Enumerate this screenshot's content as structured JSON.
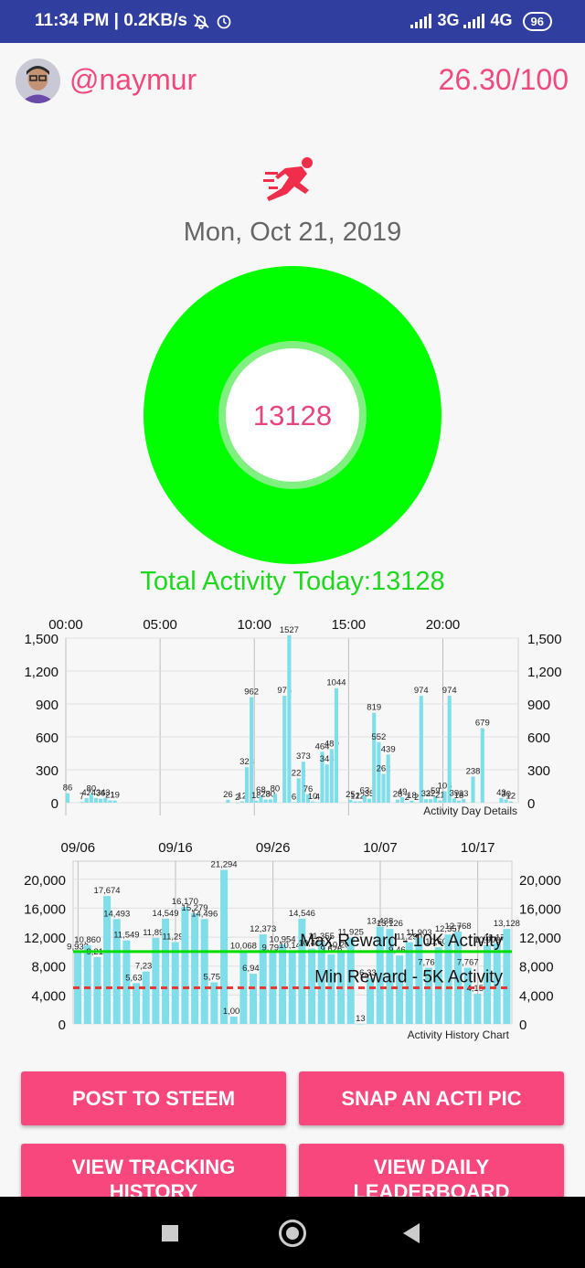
{
  "status_bar": {
    "time": "11:34 PM",
    "speed": "0.2KB/s",
    "net1": "3G",
    "net2": "4G",
    "battery": "96"
  },
  "header": {
    "username": "@naymur",
    "score": "26.30/100"
  },
  "date": "Mon, Oct 21, 2019",
  "ring": {
    "value": "13128",
    "color": "#00ff00"
  },
  "total_label": "Total Activity Today:13128",
  "chart_data": [
    {
      "type": "bar",
      "title": "Activity Day Details",
      "x_ticks": [
        "00:00",
        "05:00",
        "10:00",
        "15:00",
        "20:00"
      ],
      "y_ticks": [
        "0",
        "300",
        "600",
        "900",
        "1,200",
        "1,500"
      ],
      "ylim": [
        0,
        1500
      ],
      "x_range_hours": [
        0,
        24
      ],
      "bar_color": "#80deea",
      "bars": [
        {
          "h": 0.0,
          "v": 86,
          "l": "86"
        },
        {
          "h": 0.75,
          "v": 7,
          "l": "7"
        },
        {
          "h": 1.0,
          "v": 42,
          "l": "42"
        },
        {
          "h": 1.25,
          "v": 80,
          "l": "80"
        },
        {
          "h": 1.5,
          "v": 43,
          "l": "43"
        },
        {
          "h": 1.75,
          "v": 36,
          "l": "36"
        },
        {
          "h": 2.0,
          "v": 43,
          "l": "43"
        },
        {
          "h": 2.25,
          "v": 21,
          "l": "21"
        },
        {
          "h": 2.5,
          "v": 19,
          "l": "19"
        },
        {
          "h": 8.5,
          "v": 26,
          "l": "26"
        },
        {
          "h": 9.0,
          "v": 2,
          "l": "2"
        },
        {
          "h": 9.25,
          "v": 12,
          "l": "12"
        },
        {
          "h": 9.5,
          "v": 323,
          "l": "323"
        },
        {
          "h": 9.75,
          "v": 962,
          "l": "962"
        },
        {
          "h": 10.0,
          "v": 18,
          "l": "18"
        },
        {
          "h": 10.25,
          "v": 68,
          "l": "68"
        },
        {
          "h": 10.5,
          "v": 28,
          "l": "28"
        },
        {
          "h": 10.75,
          "v": 30,
          "l": "30"
        },
        {
          "h": 11.0,
          "v": 80,
          "l": "80"
        },
        {
          "h": 11.5,
          "v": 975,
          "l": "975"
        },
        {
          "h": 11.75,
          "v": 1527,
          "l": "1527"
        },
        {
          "h": 12.0,
          "v": 6,
          "l": "6"
        },
        {
          "h": 12.25,
          "v": 222,
          "l": "222"
        },
        {
          "h": 12.5,
          "v": 373,
          "l": "373"
        },
        {
          "h": 12.75,
          "v": 76,
          "l": "76"
        },
        {
          "h": 13.0,
          "v": 10,
          "l": "10"
        },
        {
          "h": 13.25,
          "v": 4,
          "l": "4"
        },
        {
          "h": 13.5,
          "v": 464,
          "l": "464"
        },
        {
          "h": 13.75,
          "v": 348,
          "l": "348"
        },
        {
          "h": 14.0,
          "v": 489,
          "l": "489"
        },
        {
          "h": 14.25,
          "v": 1044,
          "l": "1044"
        },
        {
          "h": 15.0,
          "v": 25,
          "l": "25"
        },
        {
          "h": 15.25,
          "v": 12,
          "l": "12"
        },
        {
          "h": 15.5,
          "v": 12,
          "l": "12"
        },
        {
          "h": 15.75,
          "v": 63,
          "l": "63"
        },
        {
          "h": 16.0,
          "v": 35,
          "l": "35"
        },
        {
          "h": 16.25,
          "v": 819,
          "l": "819"
        },
        {
          "h": 16.5,
          "v": 552,
          "l": "552"
        },
        {
          "h": 16.75,
          "v": 262,
          "l": "262"
        },
        {
          "h": 17.0,
          "v": 439,
          "l": "439"
        },
        {
          "h": 17.5,
          "v": 28,
          "l": "28"
        },
        {
          "h": 17.75,
          "v": 49,
          "l": "49"
        },
        {
          "h": 18.0,
          "v": 2,
          "l": "2"
        },
        {
          "h": 18.25,
          "v": 18,
          "l": "18"
        },
        {
          "h": 18.5,
          "v": 2,
          "l": "2"
        },
        {
          "h": 18.75,
          "v": 974,
          "l": "974"
        },
        {
          "h": 19.0,
          "v": 32,
          "l": "32"
        },
        {
          "h": 19.25,
          "v": 32,
          "l": "32"
        },
        {
          "h": 19.5,
          "v": 59,
          "l": "59"
        },
        {
          "h": 19.75,
          "v": 21,
          "l": "21"
        },
        {
          "h": 20.0,
          "v": 105,
          "l": "105"
        },
        {
          "h": 20.25,
          "v": 974,
          "l": "974"
        },
        {
          "h": 20.5,
          "v": 39,
          "l": "39"
        },
        {
          "h": 20.75,
          "v": 18,
          "l": "18"
        },
        {
          "h": 21.0,
          "v": 33,
          "l": "33"
        },
        {
          "h": 21.5,
          "v": 238,
          "l": "238"
        },
        {
          "h": 22.0,
          "v": 679,
          "l": "679"
        },
        {
          "h": 23.0,
          "v": 43,
          "l": "43"
        },
        {
          "h": 23.25,
          "v": 30,
          "l": "30"
        },
        {
          "h": 23.5,
          "v": 12,
          "l": "12"
        }
      ]
    },
    {
      "type": "bar",
      "title": "Activity History Chart",
      "x_ticks": [
        {
          "i": 0,
          "label": "09/06"
        },
        {
          "i": 10,
          "label": "09/16"
        },
        {
          "i": 20,
          "label": "09/26"
        },
        {
          "i": 31,
          "label": "10/07"
        },
        {
          "i": 41,
          "label": "10/17"
        }
      ],
      "y_ticks": [
        "0",
        "4,000",
        "8,000",
        "12,000",
        "16,000",
        "20,000"
      ],
      "ylim": [
        0,
        22500
      ],
      "bar_color": "#80deea",
      "values": [
        9932,
        10860,
        9219,
        17674,
        14493,
        11549,
        5632,
        7238,
        11897,
        14549,
        11299,
        16170,
        15279,
        14496,
        5751,
        21294,
        1009,
        10068,
        6940,
        12373,
        9798,
        10954,
        10142,
        14546,
        10412,
        11355,
        9626,
        10200,
        11925,
        13,
        6333,
        13438,
        13126,
        9460,
        11290,
        11903,
        7763,
        10600,
        12357,
        12768,
        7767,
        4157,
        10900,
        11175,
        13128
      ],
      "labels": [
        "9,932",
        "10,860",
        "9,219",
        "17,674",
        "14,493",
        "11,549",
        "5,632",
        "7,238",
        "11,897",
        "14,549",
        "11,299",
        "16,170",
        "15,279",
        "14,496",
        "5,751",
        "21,294",
        "1,009",
        "10,068",
        "6,940",
        "12,373",
        "9,798",
        "10,954",
        "10,142",
        "14,546",
        "10,412",
        "11,355",
        "9,626",
        "10,200",
        "11,925",
        "13",
        "6,333",
        "13,438",
        "13,126",
        "9,460",
        "11,290",
        "11,903",
        "7,763",
        "10,600",
        "12,357",
        "12,768",
        "7,767",
        "4,157",
        "10,900",
        "11,175",
        "13,128"
      ],
      "limit_lines": [
        {
          "value": 10000,
          "label": "Max Reward - 10K Activity",
          "color": "#00dd00",
          "style": "solid"
        },
        {
          "value": 5000,
          "label": "Min Reward - 5K Activity",
          "color": "#e53935",
          "style": "dashed"
        }
      ]
    }
  ],
  "buttons": {
    "post": "POST TO STEEM",
    "snap": "SNAP AN ACTI PIC",
    "history_1": "VIEW TRACKING",
    "history_2": "HISTORY",
    "leader_1": "VIEW DAILY",
    "leader_2": "LEADERBOARD"
  },
  "icons": {
    "runner": "running-person-icon",
    "accent": "#f0497e"
  }
}
